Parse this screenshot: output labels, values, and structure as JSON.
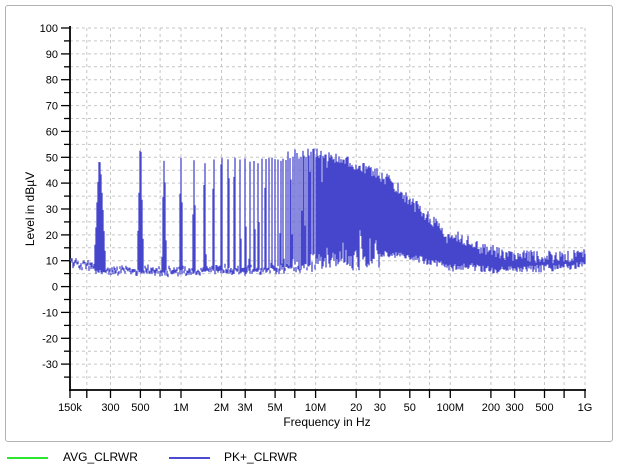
{
  "window": {
    "background": "#ffffff",
    "panel_border": "#b2b2b2"
  },
  "chart_data": {
    "type": "line",
    "subtype": "emi-spectrum",
    "title": "",
    "xlabel": "Frequency in Hz",
    "ylabel": "Level in dBµV",
    "x_scale": "log",
    "x_range_hz": [
      150000,
      1000000000
    ],
    "ylim": [
      -40,
      100
    ],
    "y_major_ticks": [
      -30,
      -20,
      -10,
      0,
      10,
      20,
      30,
      40,
      50,
      60,
      70,
      80,
      90,
      100
    ],
    "y_minor_step_db": 5,
    "grid": {
      "on": true,
      "style": "dashed",
      "color": "#c6c6c6",
      "x_subdivisions": [
        2,
        3,
        5,
        7,
        10
      ],
      "y_step_db": 5
    },
    "x_tick_labels": [
      {
        "f": 150000,
        "label": "150k"
      },
      {
        "f": 300000,
        "label": "300"
      },
      {
        "f": 500000,
        "label": "500"
      },
      {
        "f": 1000000,
        "label": "1M"
      },
      {
        "f": 2000000,
        "label": "2M"
      },
      {
        "f": 3000000,
        "label": "3M"
      },
      {
        "f": 5000000,
        "label": "5M"
      },
      {
        "f": 10000000,
        "label": "10M"
      },
      {
        "f": 20000000,
        "label": "20"
      },
      {
        "f": 30000000,
        "label": "30"
      },
      {
        "f": 50000000,
        "label": "50"
      },
      {
        "f": 100000000,
        "label": "100M"
      },
      {
        "f": 200000000,
        "label": "200"
      },
      {
        "f": 300000000,
        "label": "300"
      },
      {
        "f": 500000000,
        "label": "500"
      },
      {
        "f": 1000000000,
        "label": "1G"
      }
    ],
    "legend": [
      {
        "label": "AVG_CLRWR",
        "color": "#2ee62e"
      },
      {
        "label": "PK+_CLRWR",
        "color": "#4b4bd2"
      }
    ],
    "series": [
      {
        "name": "AVG_CLRWR",
        "color": "#2ee62e",
        "visible_in_plot": false
      },
      {
        "name": "PK+_CLRWR",
        "color": "#4646cc",
        "halo_color": "#a2a2ea",
        "visible_in_plot": true,
        "structure": {
          "baseline_db": [
            [
              150000,
              9.5
            ],
            [
              180000,
              8.5
            ],
            [
              210000,
              8
            ],
            [
              240000,
              6.5
            ],
            [
              300000,
              6
            ],
            [
              1000000,
              6
            ],
            [
              3000000,
              6.5
            ],
            [
              10000000,
              7
            ],
            [
              30000000,
              7.5
            ]
          ],
          "spike_fundamental_hz": 250000,
          "spike_last_hz": 30000000,
          "spike_peak_db": [
            [
              250000,
              50
            ],
            [
              500000,
              51.5
            ],
            [
              750000,
              47.5
            ],
            [
              1000000,
              49
            ],
            [
              1500000,
              47.5
            ],
            [
              2000000,
              48.5
            ],
            [
              3000000,
              48
            ],
            [
              5000000,
              50
            ],
            [
              8000000,
              51.5
            ],
            [
              10000000,
              51.5
            ],
            [
              13000000,
              50
            ],
            [
              16000000,
              49
            ],
            [
              20000000,
              47
            ],
            [
              25000000,
              45
            ],
            [
              30000000,
              43.5
            ]
          ],
          "band_top_db": [
            [
              30000000,
              43
            ],
            [
              36000000,
              40.5
            ],
            [
              40000000,
              38.5
            ],
            [
              50000000,
              33
            ],
            [
              63000000,
              28.5
            ],
            [
              80000000,
              23.5
            ],
            [
              90000000,
              20
            ],
            [
              100000000,
              18
            ],
            [
              110000000,
              19
            ],
            [
              130000000,
              18
            ],
            [
              160000000,
              15
            ],
            [
              200000000,
              14
            ],
            [
              250000000,
              12.5
            ],
            [
              350000000,
              12
            ],
            [
              500000000,
              11.5
            ],
            [
              700000000,
              11.5
            ],
            [
              850000000,
              12
            ],
            [
              1000000000,
              13.5
            ]
          ],
          "band_bottom_db": [
            [
              30000000,
              13
            ],
            [
              40000000,
              12.5
            ],
            [
              50000000,
              11.5
            ],
            [
              70000000,
              9.5
            ],
            [
              90000000,
              8
            ],
            [
              100000000,
              7
            ],
            [
              130000000,
              8
            ],
            [
              200000000,
              6.5
            ],
            [
              300000000,
              7
            ],
            [
              500000000,
              7
            ],
            [
              800000000,
              7.5
            ],
            [
              1000000000,
              8.5
            ]
          ]
        }
      }
    ]
  }
}
